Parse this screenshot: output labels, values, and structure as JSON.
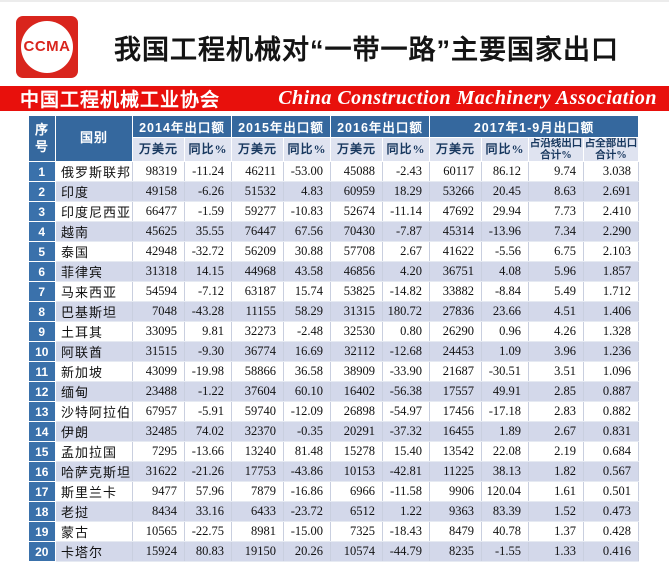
{
  "header": {
    "logo_text": "CCMA",
    "title": "我国工程机械对“一带一路”主要国家出口"
  },
  "banner": {
    "left": "中国工程机械工业协会",
    "right": "China Construction Machinery Association"
  },
  "colors": {
    "banner_red": "#e8100c",
    "logo_red": "#d9251d",
    "header_blue": "#35689e",
    "index_blue": "#3a71ab",
    "stripe_lavender": "#d3d8ea",
    "subheader_bg": "#dfe3f0",
    "subheader_text": "#17375e"
  },
  "table": {
    "index_header": "序\n号",
    "country_header": "国别",
    "col_groups": [
      {
        "label": "2014年出口额",
        "sub": [
          "万美元",
          "同比%"
        ]
      },
      {
        "label": "2015年出口额",
        "sub": [
          "万美元",
          "同比%"
        ]
      },
      {
        "label": "2016年出口额",
        "sub": [
          "万美元",
          "同比%"
        ]
      },
      {
        "label": "2017年1-9月出口额",
        "sub": [
          "万美元",
          "同比%",
          "占沿线出口合计%",
          "占全部出口合计%"
        ]
      }
    ],
    "rows": [
      [
        "1",
        "俄罗斯联邦",
        "98319",
        "-11.24",
        "46211",
        "-53.00",
        "45088",
        "-2.43",
        "60117",
        "86.12",
        "9.74",
        "3.038"
      ],
      [
        "2",
        "印度",
        "49158",
        "-6.26",
        "51532",
        "4.83",
        "60959",
        "18.29",
        "53266",
        "20.45",
        "8.63",
        "2.691"
      ],
      [
        "3",
        "印度尼西亚",
        "66477",
        "-1.59",
        "59277",
        "-10.83",
        "52674",
        "-11.14",
        "47692",
        "29.94",
        "7.73",
        "2.410"
      ],
      [
        "4",
        "越南",
        "45625",
        "35.55",
        "76447",
        "67.56",
        "70430",
        "-7.87",
        "45314",
        "-13.96",
        "7.34",
        "2.290"
      ],
      [
        "5",
        "泰国",
        "42948",
        "-32.72",
        "56209",
        "30.88",
        "57708",
        "2.67",
        "41622",
        "-5.56",
        "6.75",
        "2.103"
      ],
      [
        "6",
        "菲律宾",
        "31318",
        "14.15",
        "44968",
        "43.58",
        "46856",
        "4.20",
        "36751",
        "4.08",
        "5.96",
        "1.857"
      ],
      [
        "7",
        "马来西亚",
        "54594",
        "-7.12",
        "63187",
        "15.74",
        "53825",
        "-14.82",
        "33882",
        "-8.84",
        "5.49",
        "1.712"
      ],
      [
        "8",
        "巴基斯坦",
        "7048",
        "-43.28",
        "11155",
        "58.29",
        "31315",
        "180.72",
        "27836",
        "23.66",
        "4.51",
        "1.406"
      ],
      [
        "9",
        "土耳其",
        "33095",
        "9.81",
        "32273",
        "-2.48",
        "32530",
        "0.80",
        "26290",
        "0.96",
        "4.26",
        "1.328"
      ],
      [
        "10",
        "阿联酋",
        "31515",
        "-9.30",
        "36774",
        "16.69",
        "32112",
        "-12.68",
        "24453",
        "1.09",
        "3.96",
        "1.236"
      ],
      [
        "11",
        "新加坡",
        "43099",
        "-19.98",
        "58866",
        "36.58",
        "38909",
        "-33.90",
        "21687",
        "-30.51",
        "3.51",
        "1.096"
      ],
      [
        "12",
        "缅甸",
        "23488",
        "-1.22",
        "37604",
        "60.10",
        "16402",
        "-56.38",
        "17557",
        "49.91",
        "2.85",
        "0.887"
      ],
      [
        "13",
        "沙特阿拉伯",
        "67957",
        "-5.91",
        "59740",
        "-12.09",
        "26898",
        "-54.97",
        "17456",
        "-17.18",
        "2.83",
        "0.882"
      ],
      [
        "14",
        "伊朗",
        "32485",
        "74.02",
        "32370",
        "-0.35",
        "20291",
        "-37.32",
        "16455",
        "1.89",
        "2.67",
        "0.831"
      ],
      [
        "15",
        "孟加拉国",
        "7295",
        "-13.66",
        "13240",
        "81.48",
        "15278",
        "15.40",
        "13542",
        "22.08",
        "2.19",
        "0.684"
      ],
      [
        "16",
        "哈萨克斯坦",
        "31622",
        "-21.26",
        "17753",
        "-43.86",
        "10153",
        "-42.81",
        "11225",
        "38.13",
        "1.82",
        "0.567"
      ],
      [
        "17",
        "斯里兰卡",
        "9477",
        "57.96",
        "7879",
        "-16.86",
        "6966",
        "-11.58",
        "9906",
        "120.04",
        "1.61",
        "0.501"
      ],
      [
        "18",
        "老挝",
        "8434",
        "33.16",
        "6433",
        "-23.72",
        "6512",
        "1.22",
        "9363",
        "83.39",
        "1.52",
        "0.473"
      ],
      [
        "19",
        "蒙古",
        "10565",
        "-22.75",
        "8981",
        "-15.00",
        "7325",
        "-18.43",
        "8479",
        "40.78",
        "1.37",
        "0.428"
      ],
      [
        "20",
        "卡塔尔",
        "15924",
        "80.83",
        "19150",
        "20.26",
        "10574",
        "-44.79",
        "8235",
        "-1.55",
        "1.33",
        "0.416"
      ]
    ]
  }
}
